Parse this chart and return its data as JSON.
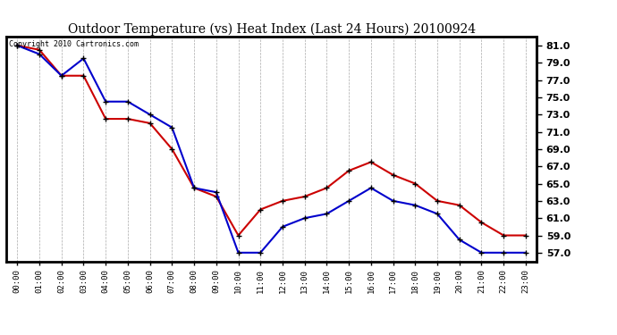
{
  "title": "Outdoor Temperature (vs) Heat Index (Last 24 Hours) 20100924",
  "copyright_text": "Copyright 2010 Cartronics.com",
  "x_labels": [
    "00:00",
    "01:00",
    "02:00",
    "03:00",
    "04:00",
    "05:00",
    "06:00",
    "07:00",
    "08:00",
    "09:00",
    "10:00",
    "11:00",
    "12:00",
    "13:00",
    "14:00",
    "15:00",
    "16:00",
    "17:00",
    "18:00",
    "19:00",
    "20:00",
    "21:00",
    "22:00",
    "23:00"
  ],
  "blue_data": [
    81.0,
    80.0,
    77.5,
    79.5,
    74.5,
    74.5,
    73.0,
    71.5,
    64.5,
    64.0,
    57.0,
    57.0,
    60.0,
    61.0,
    61.5,
    63.0,
    64.5,
    63.0,
    62.5,
    61.5,
    58.5,
    57.0,
    57.0,
    57.0
  ],
  "red_data": [
    81.0,
    80.5,
    77.5,
    77.5,
    72.5,
    72.5,
    72.0,
    69.0,
    64.5,
    63.5,
    59.0,
    62.0,
    63.0,
    63.5,
    64.5,
    66.5,
    67.5,
    66.0,
    65.0,
    63.0,
    62.5,
    60.5,
    59.0,
    59.0
  ],
  "ylim": [
    56.0,
    82.0
  ],
  "yticks": [
    57.0,
    59.0,
    61.0,
    63.0,
    65.0,
    67.0,
    69.0,
    71.0,
    73.0,
    75.0,
    77.0,
    79.0,
    81.0
  ],
  "blue_color": "#0000cc",
  "red_color": "#cc0000",
  "bg_color": "#ffffff",
  "grid_color": "#aaaaaa",
  "title_fontsize": 10,
  "marker": "+",
  "marker_color": "#000000",
  "marker_size": 5,
  "linewidth": 1.5,
  "border_color": "#000000",
  "border_width": 2.0
}
